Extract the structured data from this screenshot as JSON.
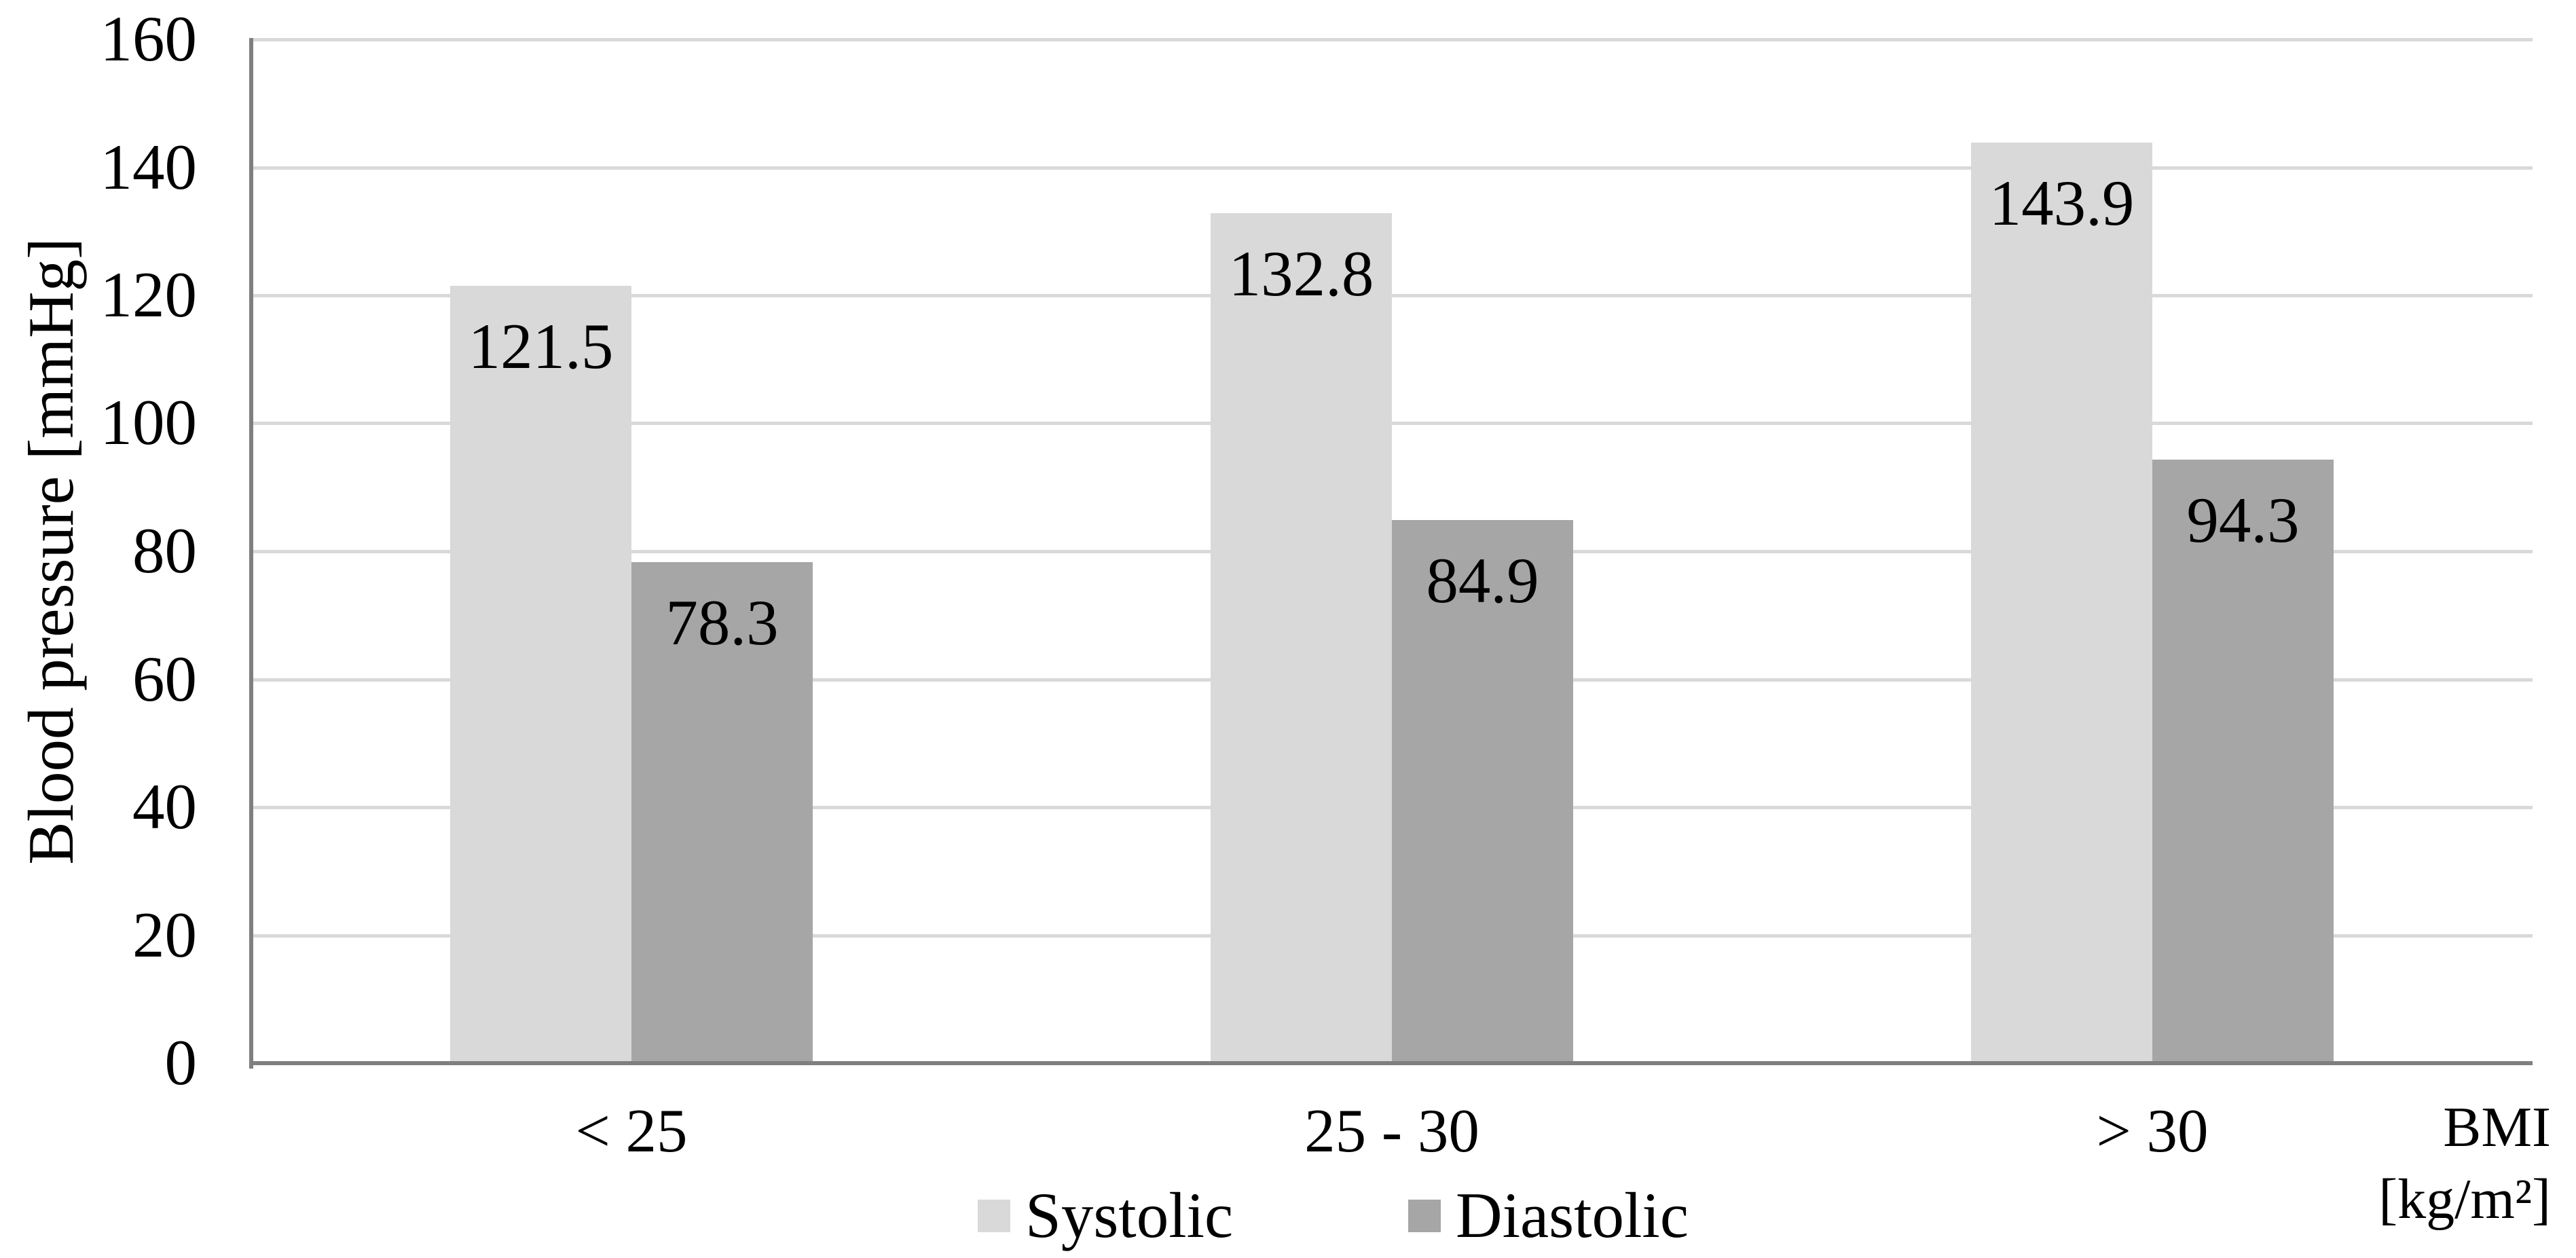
{
  "chart_data": {
    "type": "bar",
    "title": "",
    "categories": [
      "< 25",
      "25 - 30",
      "> 30"
    ],
    "series": [
      {
        "name": "Systolic",
        "values": [
          121.5,
          132.8,
          143.9
        ],
        "color": "#D9D9D9"
      },
      {
        "name": "Diastolic",
        "values": [
          78.3,
          84.9,
          94.3
        ],
        "color": "#A6A6A6"
      }
    ],
    "ylabel": "Blood pressure [mmHg]",
    "xlabel_lines": [
      "BMI",
      "[kg/m²]"
    ],
    "ylim": [
      0,
      160
    ],
    "yticks": [
      0,
      20,
      40,
      60,
      80,
      100,
      120,
      140,
      160
    ],
    "grid": true,
    "legend_position": "bottom",
    "data_labels": "inside-end",
    "colors": {
      "axis": "#7F7F7F",
      "gridline": "#D9D9D9",
      "text": "#000000",
      "background": "#FFFFFF"
    }
  }
}
